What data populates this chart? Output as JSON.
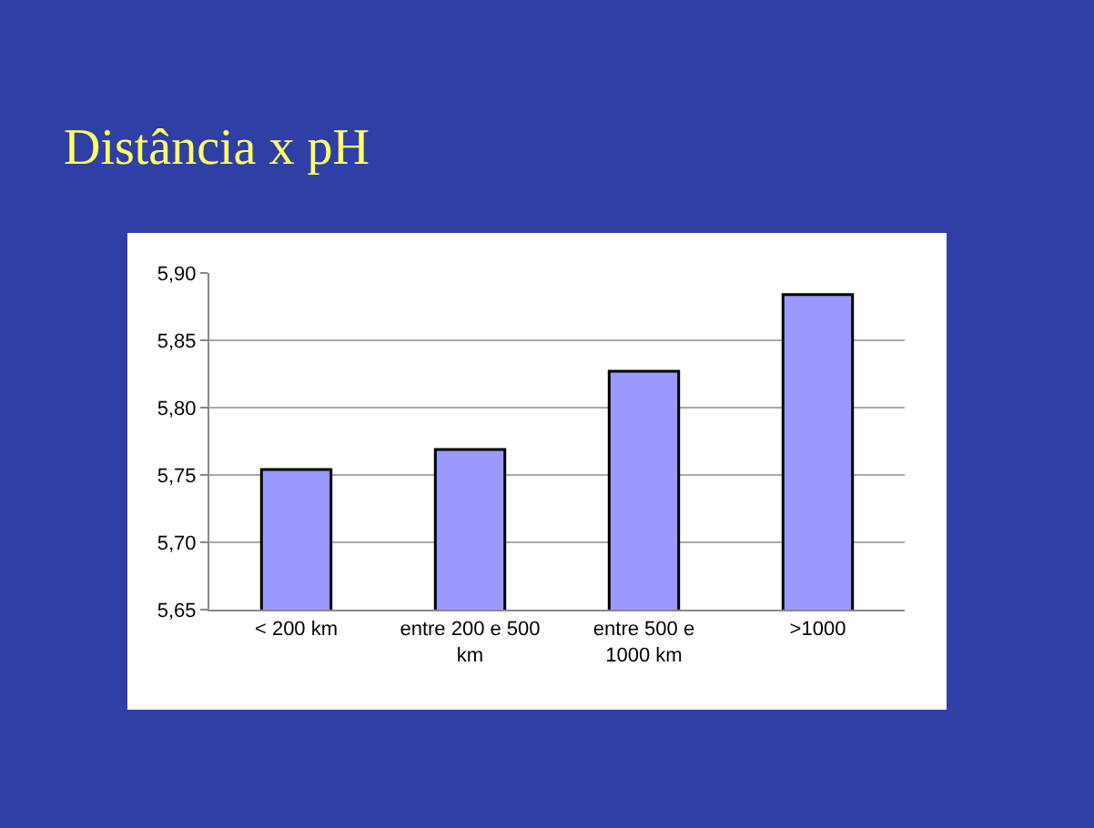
{
  "chart_data": {
    "type": "bar",
    "title": "Distância x pH",
    "categories": [
      "< 200 km",
      "entre 200 e 500 km",
      "entre 500 e 1000 km",
      ">1000"
    ],
    "values": [
      5.754,
      5.769,
      5.827,
      5.884
    ],
    "color": "#9999ff",
    "ylim": [
      5.65,
      5.9
    ],
    "yticks": [
      {
        "value": 5.65,
        "label": "5,65"
      },
      {
        "value": 5.7,
        "label": "5,70"
      },
      {
        "value": 5.75,
        "label": "5,75"
      },
      {
        "value": 5.8,
        "label": "5,80"
      },
      {
        "value": 5.85,
        "label": "5,85"
      },
      {
        "value": 5.9,
        "label": "5,90"
      }
    ],
    "grid": "y",
    "legend": false
  }
}
